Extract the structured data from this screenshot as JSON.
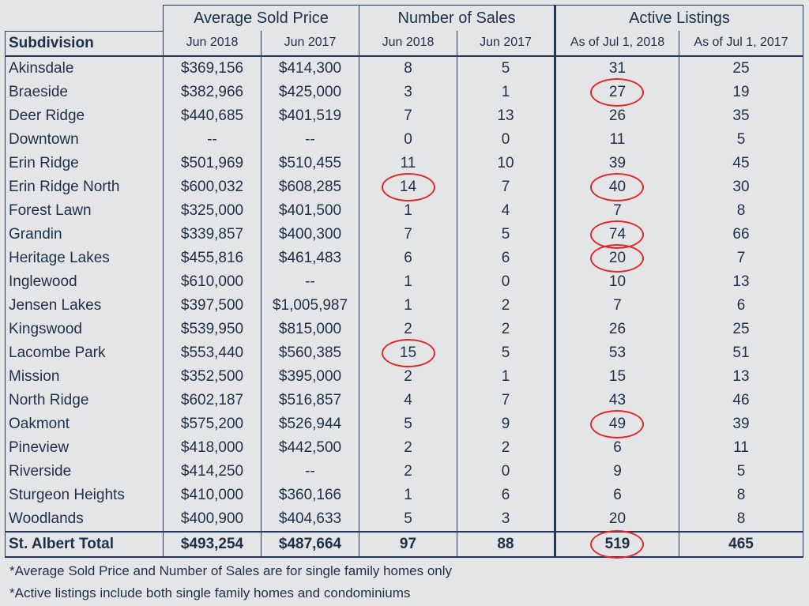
{
  "headers": {
    "groups": [
      "Average Sold Price",
      "Number of Sales",
      "Active Listings"
    ],
    "subdivision": "Subdivision",
    "sub": [
      "Jun 2018",
      "Jun 2017",
      "Jun 2018",
      "Jun 2017",
      "As of Jul 1, 2018",
      "As of Jul 1, 2017"
    ]
  },
  "rows": [
    [
      "Akinsdale",
      "$369,156",
      "$414,300",
      "8",
      "5",
      "31",
      "25"
    ],
    [
      "Braeside",
      "$382,966",
      "$425,000",
      "3",
      "1",
      "27",
      "19"
    ],
    [
      "Deer Ridge",
      "$440,685",
      "$401,519",
      "7",
      "13",
      "26",
      "35"
    ],
    [
      "Downtown",
      "--",
      "--",
      "0",
      "0",
      "11",
      "5"
    ],
    [
      "Erin Ridge",
      "$501,969",
      "$510,455",
      "11",
      "10",
      "39",
      "45"
    ],
    [
      "Erin Ridge North",
      "$600,032",
      "$608,285",
      "14",
      "7",
      "40",
      "30"
    ],
    [
      "Forest Lawn",
      "$325,000",
      "$401,500",
      "1",
      "4",
      "7",
      "8"
    ],
    [
      "Grandin",
      "$339,857",
      "$400,300",
      "7",
      "5",
      "74",
      "66"
    ],
    [
      "Heritage Lakes",
      "$455,816",
      "$461,483",
      "6",
      "6",
      "20",
      "7"
    ],
    [
      "Inglewood",
      "$610,000",
      "--",
      "1",
      "0",
      "10",
      "13"
    ],
    [
      "Jensen Lakes",
      "$397,500",
      "$1,005,987",
      "1",
      "2",
      "7",
      "6"
    ],
    [
      "Kingswood",
      "$539,950",
      "$815,000",
      "2",
      "2",
      "26",
      "25"
    ],
    [
      "Lacombe Park",
      "$553,440",
      "$560,385",
      "15",
      "5",
      "53",
      "51"
    ],
    [
      "Mission",
      "$352,500",
      "$395,000",
      "2",
      "1",
      "15",
      "13"
    ],
    [
      "North Ridge",
      "$602,187",
      "$516,857",
      "4",
      "7",
      "43",
      "46"
    ],
    [
      "Oakmont",
      "$575,200",
      "$526,944",
      "5",
      "9",
      "49",
      "39"
    ],
    [
      "Pineview",
      "$418,000",
      "$442,500",
      "2",
      "2",
      "6",
      "11"
    ],
    [
      "Riverside",
      "$414,250",
      "--",
      "2",
      "0",
      "9",
      "5"
    ],
    [
      "Sturgeon Heights",
      "$410,000",
      "$360,166",
      "1",
      "6",
      "6",
      "8"
    ],
    [
      "Woodlands",
      "$400,900",
      "$404,633",
      "5",
      "3",
      "20",
      "8"
    ]
  ],
  "total": [
    "St. Albert Total",
    "$493,254",
    "$487,664",
    "97",
    "88",
    "519",
    "465"
  ],
  "highlighted_cells": [
    {
      "row": "Braeside",
      "column": "As of Jul 1, 2018",
      "value": "27"
    },
    {
      "row": "Erin Ridge North",
      "column": "Jun 2018 sales",
      "value": "14"
    },
    {
      "row": "Erin Ridge North",
      "column": "As of Jul 1, 2018",
      "value": "40"
    },
    {
      "row": "Grandin",
      "column": "As of Jul 1, 2018",
      "value": "74"
    },
    {
      "row": "Heritage Lakes",
      "column": "As of Jul 1, 2018",
      "value": "20"
    },
    {
      "row": "Lacombe Park",
      "column": "Jun 2018 sales",
      "value": "15"
    },
    {
      "row": "Oakmont",
      "column": "As of Jul 1, 2018",
      "value": "49"
    },
    {
      "row": "St. Albert Total",
      "column": "As of Jul 1, 2018",
      "value": "519"
    }
  ],
  "colors": {
    "text": "#1d2f49",
    "grid": "#24375a",
    "background": "#e4e5e7",
    "highlight_ring": "#e0282a"
  },
  "notes": [
    "*Average Sold Price and Number of Sales are for single family homes only",
    "*Active listings include both single family homes and condominiums"
  ]
}
